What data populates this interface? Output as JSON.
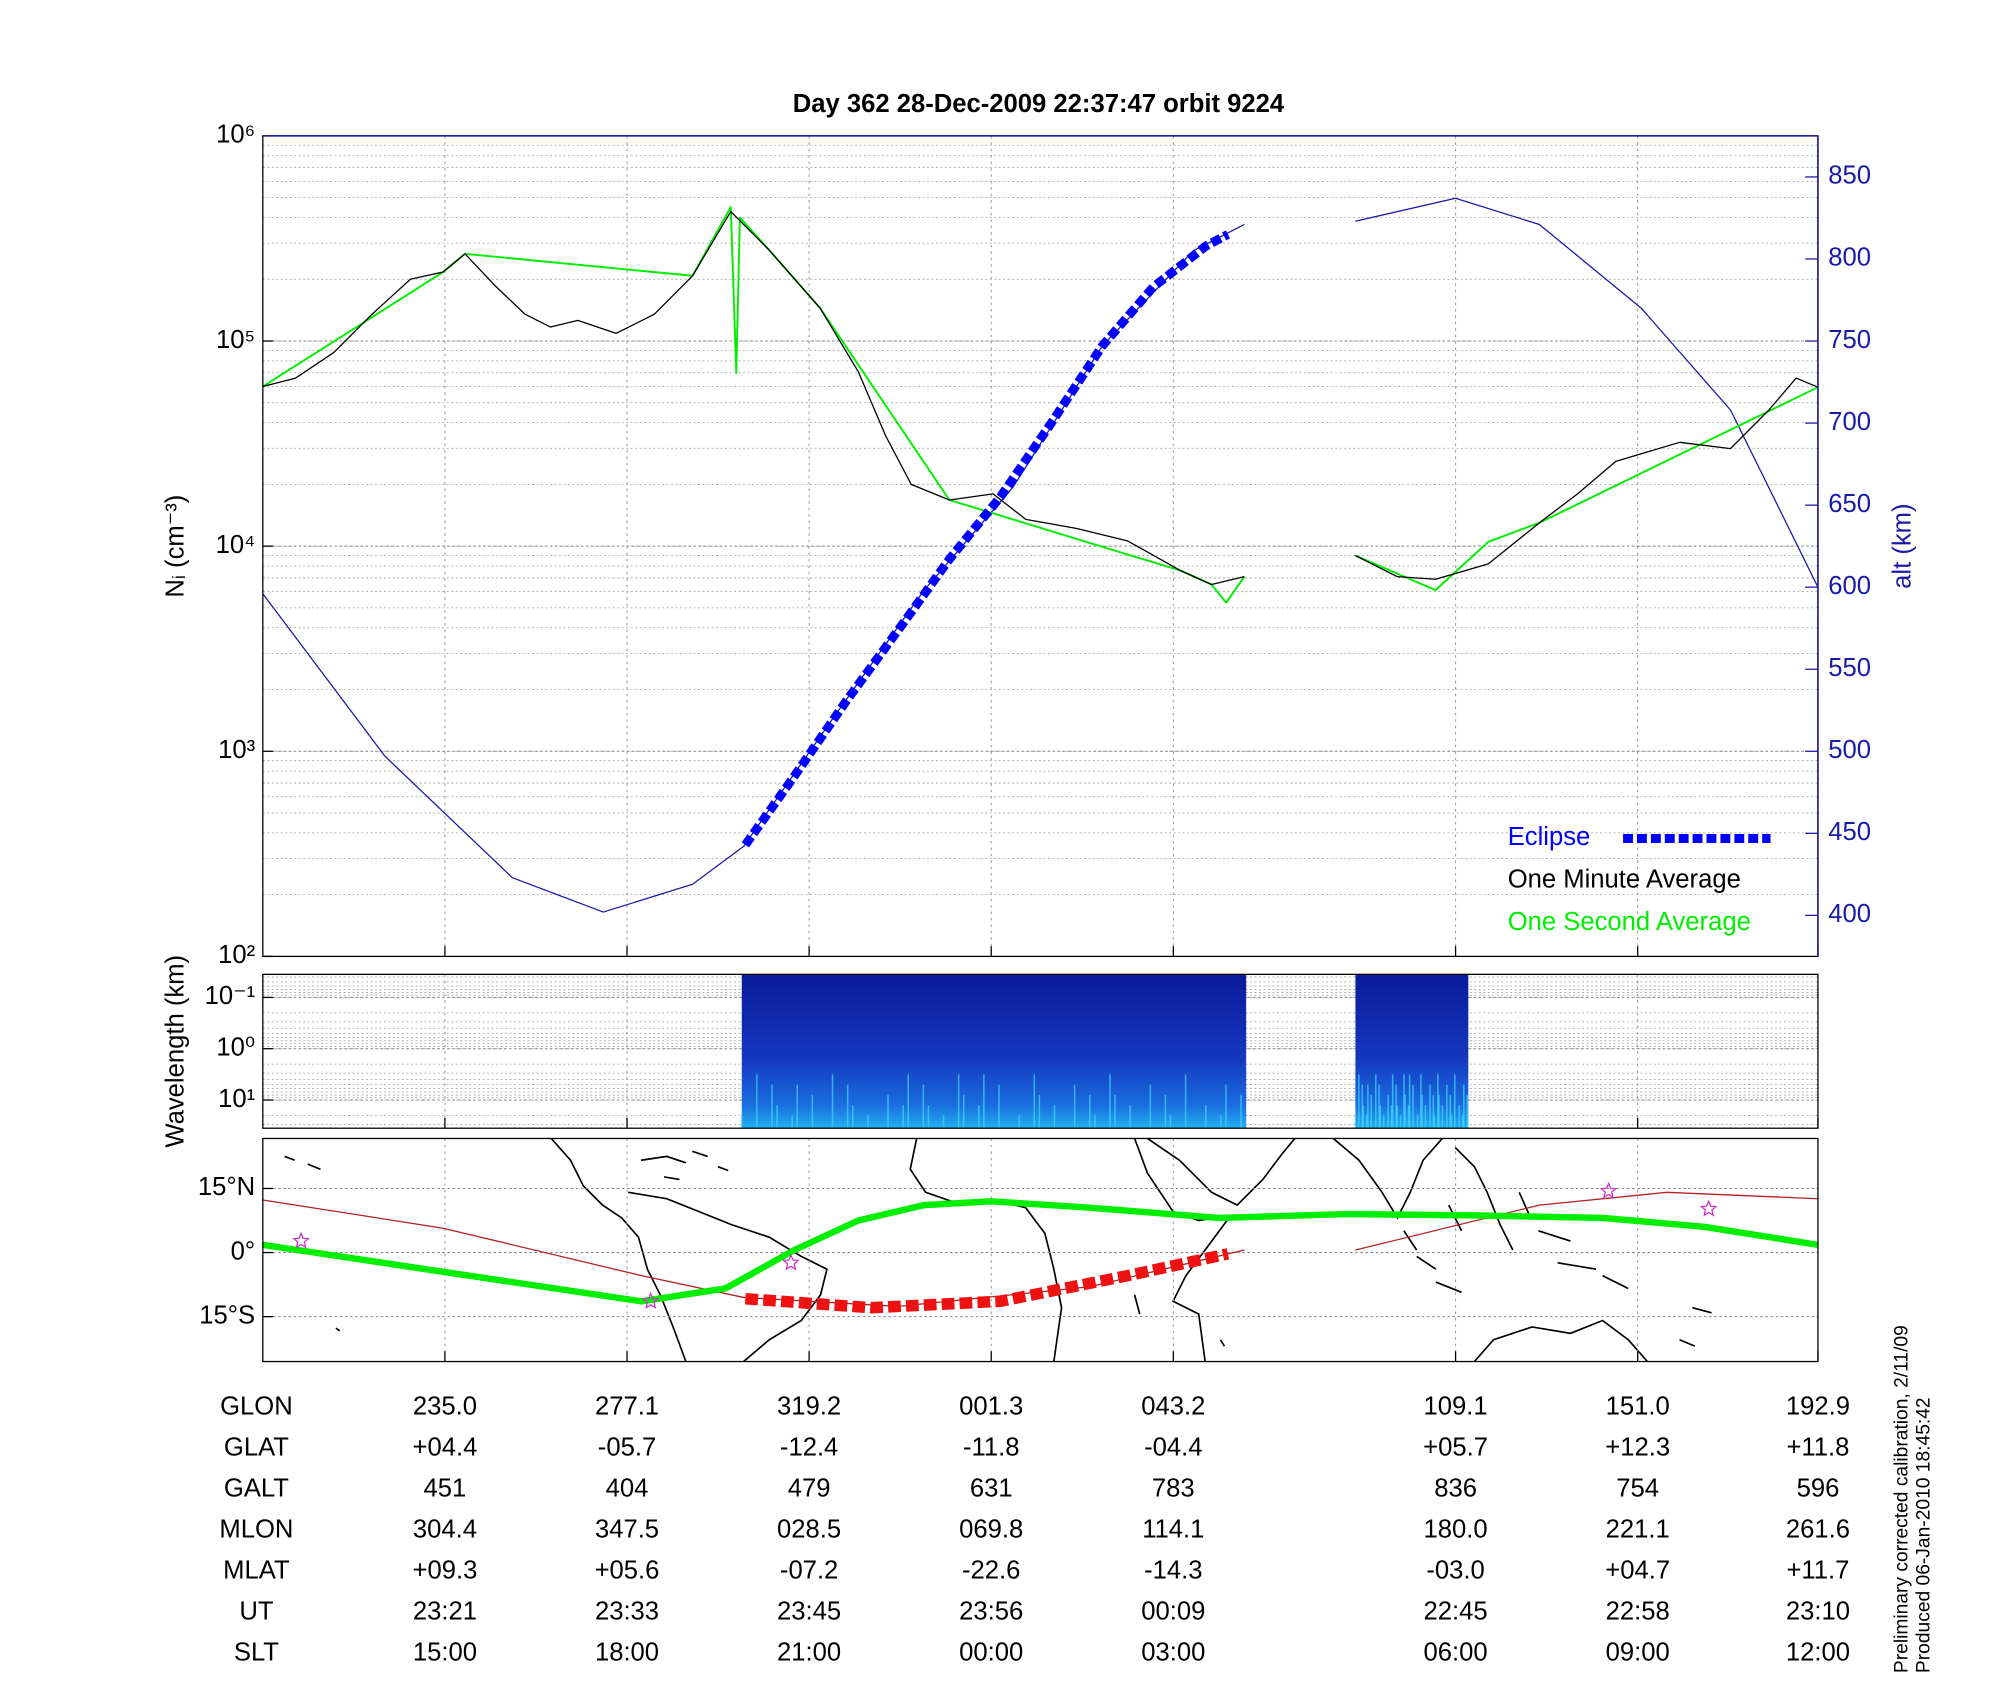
{
  "chart_data": [
    {
      "type": "line",
      "title": "Day 362  28-Dec-2009 22:37:47   orbit 9224",
      "ylabel": "Nᵢ (cm⁻³)",
      "y2label": "alt (km)",
      "log_y": true,
      "grid": true,
      "legend": "lower right",
      "xlim": [
        0,
        8.54
      ],
      "xticks": [
        1,
        2,
        3,
        4,
        5,
        6.55,
        7.55,
        8.54
      ],
      "ylim": [
        100,
        1000000
      ],
      "yticks": [
        {
          "value": 100,
          "label": "10²"
        },
        {
          "value": 1000,
          "label": "10³"
        },
        {
          "value": 10000,
          "label": "10⁴"
        },
        {
          "value": 100000,
          "label": "10⁵"
        },
        {
          "value": 1000000,
          "label": "10⁶"
        }
      ],
      "y2lim": [
        375,
        875
      ],
      "y2ticks": [
        400,
        450,
        500,
        550,
        600,
        650,
        700,
        750,
        800,
        850
      ],
      "series": [
        {
          "axis": "y2",
          "color": "#1a1aa8",
          "width": 1,
          "x": [
            0,
            0.67,
            1.37,
            1.87,
            2.36,
            2.64,
            3.13,
            3.63,
            4.12,
            4.61,
            5.11,
            5.39,
            5.7,
            6.0,
            6.55,
            7.01,
            7.57,
            8.06,
            8.54
          ],
          "values": [
            596,
            497,
            423,
            402,
            419,
            442,
            520,
            598,
            661,
            747,
            805,
            821,
            null,
            823,
            837,
            821,
            770,
            708,
            600
          ]
        },
        {
          "name": "Eclipse",
          "axis": "y2",
          "color": "#0000ff",
          "width": 7,
          "dash": true,
          "x": [
            2.65,
            2.92,
            3.2,
            3.49,
            3.77,
            4.05,
            4.33,
            4.61,
            4.89,
            5.18,
            5.3
          ],
          "values": [
            443,
            485,
            530,
            574,
            617,
            655,
            700,
            747,
            783,
            808,
            815
          ]
        },
        {
          "name": "One Minute Average",
          "color": "#000000",
          "width": 1,
          "x": [
            0,
            0.18,
            0.39,
            0.6,
            0.81,
            0.99,
            1.11,
            1.27,
            1.44,
            1.58,
            1.73,
            1.94,
            2.15,
            2.36,
            2.57,
            2.78,
            3.06,
            3.27,
            3.42,
            3.56,
            3.77,
            4.01,
            4.19,
            4.47,
            4.75,
            5.04,
            5.21,
            5.39,
            5.7,
            6.0,
            6.23,
            6.44,
            6.73,
            7.01,
            7.22,
            7.43,
            7.78,
            8.06,
            8.27,
            8.42,
            8.54
          ],
          "values": [
            60000,
            66000,
            88000,
            135000,
            200000,
            217000,
            266000,
            188000,
            135000,
            117000,
            126000,
            109000,
            135000,
            208000,
            428000,
            278000,
            145000,
            70800,
            34500,
            20000,
            16800,
            18000,
            13500,
            12200,
            10600,
            7600,
            6500,
            7100,
            null,
            9000,
            7100,
            6900,
            8200,
            13000,
            18000,
            25900,
            32100,
            29900,
            46000,
            66000,
            59600
          ]
        },
        {
          "name": "One Second Average",
          "color": "#00ee00",
          "width": 1.5,
          "x": [
            0,
            0.99,
            1.11,
            2.36,
            2.57,
            2.6,
            2.62,
            2.78,
            3.06,
            3.77,
            5.04,
            5.21,
            5.29,
            5.39,
            5.7,
            6.0,
            6.44,
            6.73,
            7.01,
            8.54
          ],
          "values": [
            60000,
            217000,
            266000,
            208000,
            450000,
            70000,
            400000,
            278000,
            145000,
            16800,
            7600,
            6500,
            5300,
            7100,
            null,
            9000,
            6100,
            10500,
            13000,
            59600
          ]
        }
      ]
    },
    {
      "type": "heatmap",
      "ylabel": "Wavelength (km)",
      "log_y": true,
      "xlim": [
        0,
        8.54
      ],
      "xticks": [
        1,
        2,
        3,
        4,
        5,
        6.55,
        7.55,
        8.54
      ],
      "ylim": [
        35.5,
        0.0355
      ],
      "yticks": [
        {
          "value": 0.1,
          "label": "10⁻¹"
        },
        {
          "value": 1,
          "label": "10⁰"
        },
        {
          "value": 10,
          "label": "10¹"
        }
      ],
      "coverage": [
        [
          2.63,
          5.4
        ],
        [
          6.0,
          6.62
        ]
      ]
    },
    {
      "type": "map",
      "xlim": [
        0,
        8.54
      ],
      "xticks": [
        1,
        2,
        3,
        4,
        5,
        6.55,
        7.55,
        8.54
      ],
      "ylim": [
        -25.5,
        26.7
      ],
      "yticks": [
        {
          "value": 15,
          "label": "15°N"
        },
        {
          "value": 0,
          "label": "0°"
        },
        {
          "value": -15,
          "label": "15°S"
        }
      ],
      "series": [
        {
          "color": "#b22222",
          "width": 1,
          "x": [
            0,
            0.99,
            2.08,
            2.64,
            3.49,
            4.54,
            5.39,
            5.7,
            6.0,
            7.01,
            7.71,
            8.54
          ],
          "values": [
            12.3,
            5.7,
            -5.4,
            -10.5,
            -12.6,
            -8,
            0.6,
            null,
            0.6,
            11.1,
            14.1,
            12.6
          ]
        },
        {
          "color": "#00ee00",
          "width": 5,
          "x": [
            0,
            0.99,
            2.08,
            2.54,
            2.92,
            3.27,
            3.63,
            4.0,
            4.54,
            5.25,
            5.95,
            6.65,
            7.36,
            7.92,
            8.54
          ],
          "values": [
            1.8,
            -4.5,
            -11.4,
            -8.4,
            0.6,
            7.5,
            11.1,
            12,
            10.5,
            8.1,
            9,
            8.7,
            8.1,
            6,
            1.8
          ]
        },
        {
          "color": "#ee1111",
          "width": 9,
          "dash": true,
          "x": [
            2.65,
            3.34,
            4.05,
            4.75,
            5.3
          ],
          "values": [
            -10.8,
            -12.9,
            -11.4,
            -5.4,
            -0.3
          ]
        },
        {
          "type": "scatter",
          "color": "#cc33cc",
          "x": [
            0.21,
            2.13,
            2.9,
            7.39,
            7.94
          ],
          "values": [
            2.7,
            -11.4,
            -2.4,
            14.4,
            10.2
          ]
        }
      ]
    }
  ],
  "table": {
    "rows": [
      {
        "label": "GLON",
        "values": [
          "235.0",
          "277.1",
          "319.2",
          "001.3",
          "043.2",
          "109.1",
          "151.0",
          "192.9"
        ]
      },
      {
        "label": "GLAT",
        "values": [
          "+04.4",
          "-05.7",
          "-12.4",
          "-11.8",
          "-04.4",
          "+05.7",
          "+12.3",
          "+11.8"
        ]
      },
      {
        "label": "GALT",
        "values": [
          "451",
          "404",
          "479",
          "631",
          "783",
          "836",
          "754",
          "596"
        ]
      },
      {
        "label": "MLON",
        "values": [
          "304.4",
          "347.5",
          "028.5",
          "069.8",
          "114.1",
          "180.0",
          "221.1",
          "261.6"
        ]
      },
      {
        "label": "MLAT",
        "values": [
          "+09.3",
          "+05.6",
          "-07.2",
          "-22.6",
          "-14.3",
          "-03.0",
          "+04.7",
          "+11.7"
        ]
      },
      {
        "label": "UT",
        "values": [
          "23:21",
          "23:33",
          "23:45",
          "23:56",
          "00:09",
          "22:45",
          "22:58",
          "23:10"
        ]
      },
      {
        "label": "SLT",
        "values": [
          "15:00",
          "18:00",
          "21:00",
          "00:00",
          "03:00",
          "06:00",
          "09:00",
          "12:00"
        ]
      }
    ]
  },
  "footnotes": [
    "Preliminary corrected calibration, 2/11/09",
    "Produced 06-Jan-2010 18:45:42"
  ]
}
